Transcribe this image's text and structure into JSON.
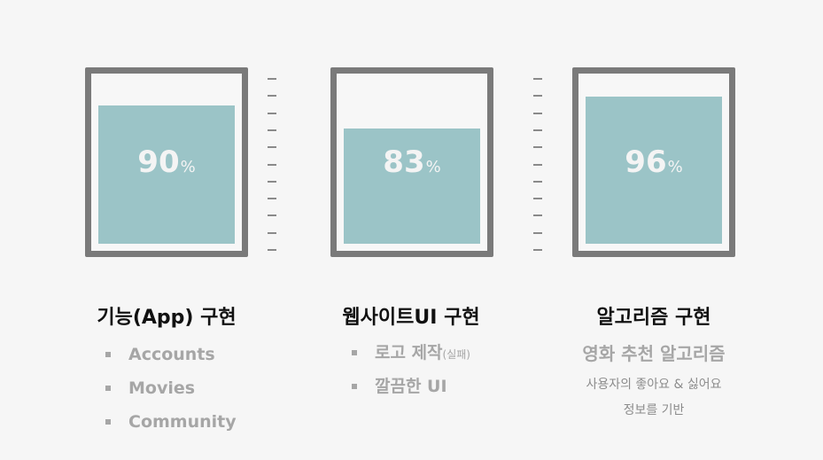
{
  "gauges": [
    {
      "value": 90,
      "value_text": "90",
      "unit": "%",
      "fill_fraction": 0.85
    },
    {
      "value": 83,
      "value_text": "83",
      "unit": "%",
      "fill_fraction": 0.705
    },
    {
      "value": 96,
      "value_text": "96",
      "unit": "%",
      "fill_fraction": 0.9
    }
  ],
  "sections": [
    {
      "title": "기능(App) 구현",
      "items": [
        "Accounts",
        "Movies",
        "Community"
      ]
    },
    {
      "title": "웹사이트UI 구현",
      "items": [
        {
          "text": "로고 제작",
          "note": "(실패)"
        },
        {
          "text": "깔끔한 UI"
        }
      ]
    },
    {
      "title": "알고리즘 구현",
      "subtitle": "영화 추천 알고리즘",
      "description_lines": [
        "사용자의 좋아요 & 싫어요",
        "정보를 기반"
      ]
    }
  ],
  "colors": {
    "background": "#f6f6f6",
    "frame": "#7a7a7a",
    "fill": "#9bc4c7",
    "muted_text": "#a6a6a6"
  }
}
